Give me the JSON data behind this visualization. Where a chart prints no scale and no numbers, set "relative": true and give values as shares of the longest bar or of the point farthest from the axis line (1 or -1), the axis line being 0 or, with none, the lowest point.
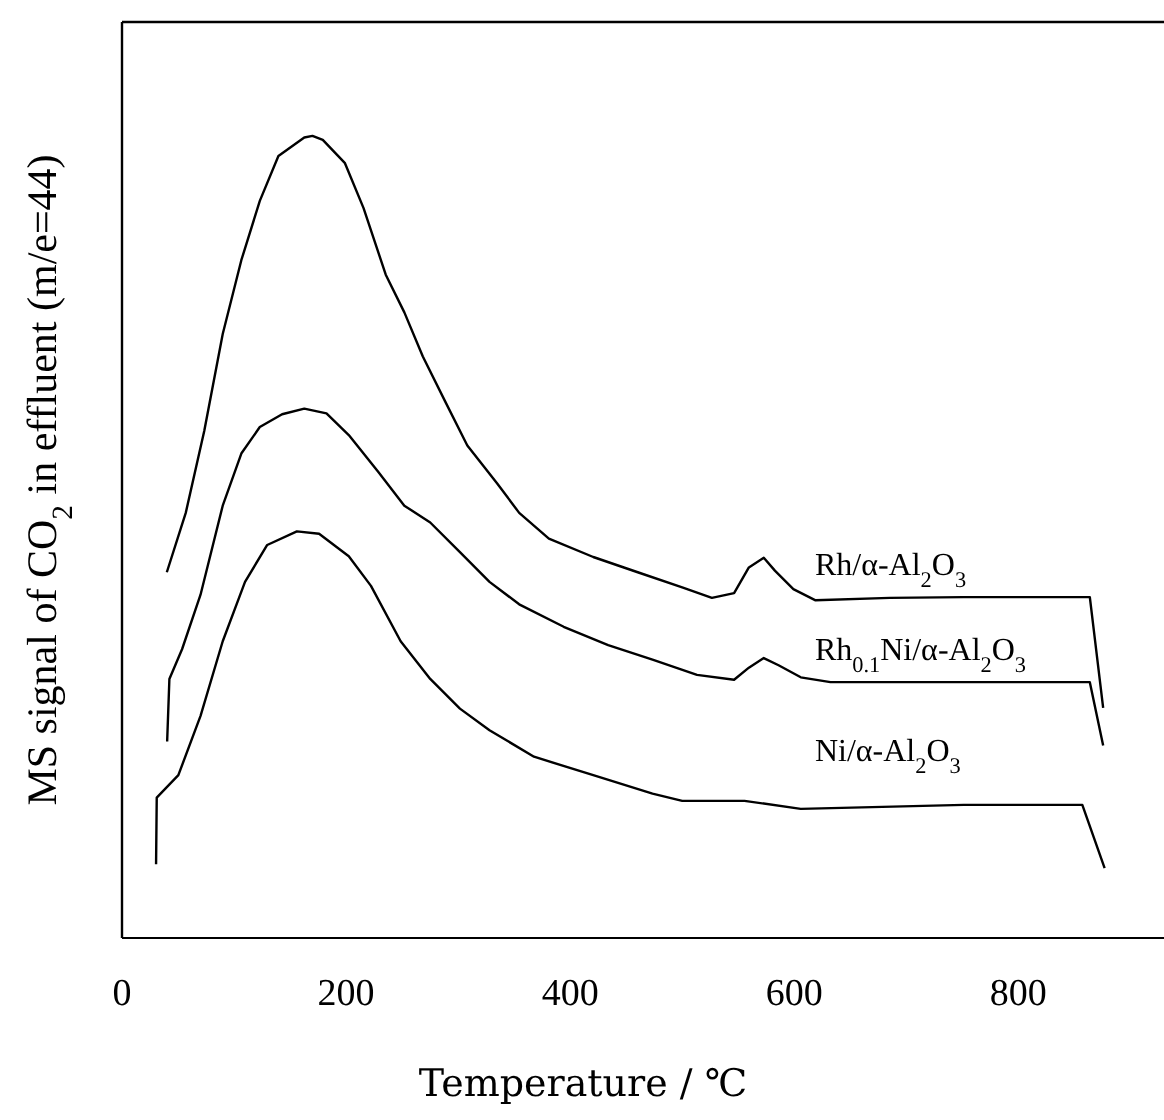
{
  "chart_data": {
    "type": "line",
    "xlabel": "Temperature / ℃",
    "ylabel": "MS signal of CO$_{2}$ in effluent (m/e=44)",
    "relative": true,
    "xlim": [
      0,
      930
    ],
    "xticks": [
      0,
      200,
      400,
      600,
      800
    ],
    "marker": "none",
    "grid": false,
    "series": [
      {
        "name": "Rh/α-Al$_{2}$O$_{3}$",
        "color": "#000000",
        "x": [
          40,
          56.9,
          73.4,
          89.9,
          106.5,
          123,
          139.6,
          162.7,
          170,
          179.2,
          199,
          215.6,
          235.4,
          252,
          268.5,
          288.4,
          308.2,
          334.7,
          354.5,
          381,
          420.6,
          460.3,
          500,
          526.5,
          546.3,
          559.5,
          572.8,
          582.7,
          599.2,
          619,
          685.2,
          751.3,
          863.8,
          875.7
        ],
        "values": [
          0.456,
          0.53,
          0.632,
          0.753,
          0.845,
          0.919,
          0.975,
          0.998,
          1,
          0.995,
          0.966,
          0.91,
          0.827,
          0.78,
          0.725,
          0.669,
          0.614,
          0.567,
          0.53,
          0.498,
          0.475,
          0.456,
          0.437,
          0.424,
          0.43,
          0.462,
          0.474,
          0.458,
          0.435,
          0.421,
          0.424,
          0.425,
          0.425,
          0.287
        ]
      },
      {
        "name": "Rh$_{0.1}$Ni/α-Al$_{2}$O$_{3}$",
        "color": "#000000",
        "x": [
          40.3,
          42.3,
          53.6,
          70.1,
          89.9,
          106.5,
          123,
          142.9,
          162.7,
          182.5,
          202.4,
          228.8,
          252,
          275.1,
          301.6,
          328,
          354.5,
          394.2,
          433.9,
          473.5,
          513.2,
          546.3,
          559.5,
          572.8,
          586,
          605.8,
          632.3,
          863.8,
          875.7
        ],
        "values": [
          0.245,
          0.323,
          0.36,
          0.428,
          0.539,
          0.604,
          0.637,
          0.653,
          0.66,
          0.654,
          0.627,
          0.581,
          0.539,
          0.518,
          0.481,
          0.444,
          0.416,
          0.388,
          0.365,
          0.347,
          0.328,
          0.322,
          0.337,
          0.349,
          0.34,
          0.325,
          0.319,
          0.319,
          0.24
        ]
      },
      {
        "name": "Ni/α-Al$_{2}$O$_{3}$",
        "color": "#000000",
        "x": [
          30.4,
          31,
          50.3,
          70.1,
          89.9,
          109.8,
          129.6,
          156.1,
          175.9,
          202.4,
          222.2,
          248.7,
          275.1,
          301.6,
          328,
          367.7,
          420.6,
          473.5,
          500,
          555.6,
          605.8,
          751.3,
          857.1,
          877
        ],
        "values": [
          0.092,
          0.175,
          0.203,
          0.277,
          0.37,
          0.444,
          0.49,
          0.507,
          0.504,
          0.476,
          0.439,
          0.37,
          0.323,
          0.286,
          0.259,
          0.226,
          0.203,
          0.18,
          0.171,
          0.171,
          0.161,
          0.166,
          0.166,
          0.087
        ]
      }
    ]
  }
}
